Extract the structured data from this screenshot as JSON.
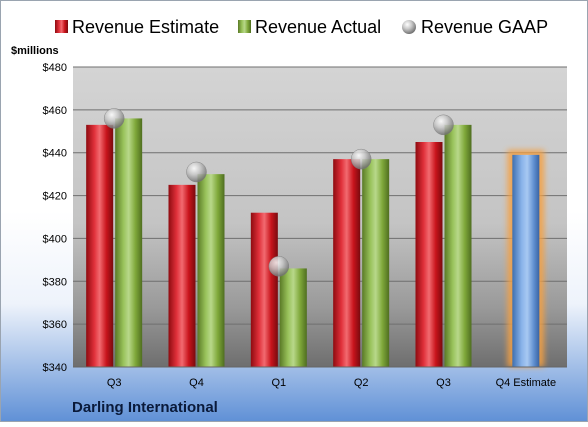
{
  "chart_data": {
    "type": "bar",
    "title": "Darling International",
    "ylabel": "$millions",
    "ylim": [
      340,
      480
    ],
    "yticks": [
      340,
      360,
      380,
      400,
      420,
      440,
      460,
      480
    ],
    "ytick_labels": [
      "$340",
      "$360",
      "$380",
      "$400",
      "$420",
      "$440",
      "$460",
      "$480"
    ],
    "categories": [
      "Q3",
      "Q4",
      "Q1",
      "Q2",
      "Q3",
      "Q4 Estimate"
    ],
    "legend_position": "top",
    "grid": true,
    "series": [
      {
        "name": "Revenue Estimate",
        "type": "bar",
        "color": "#c8141c",
        "values": [
          453,
          425,
          412,
          437,
          445,
          null
        ]
      },
      {
        "name": "Revenue Actual",
        "type": "bar",
        "color": "#7fa83a",
        "values": [
          456,
          430,
          386,
          437,
          453,
          null
        ]
      },
      {
        "name": "Revenue GAAP",
        "type": "marker",
        "color": "#b0b0b0",
        "values": [
          456,
          431,
          387,
          437,
          453,
          null
        ]
      },
      {
        "name": "Q4 Estimate",
        "type": "bar",
        "color": "#6a9ad6",
        "highlight": "#f5a043",
        "values": [
          null,
          null,
          null,
          null,
          null,
          439
        ]
      }
    ]
  }
}
